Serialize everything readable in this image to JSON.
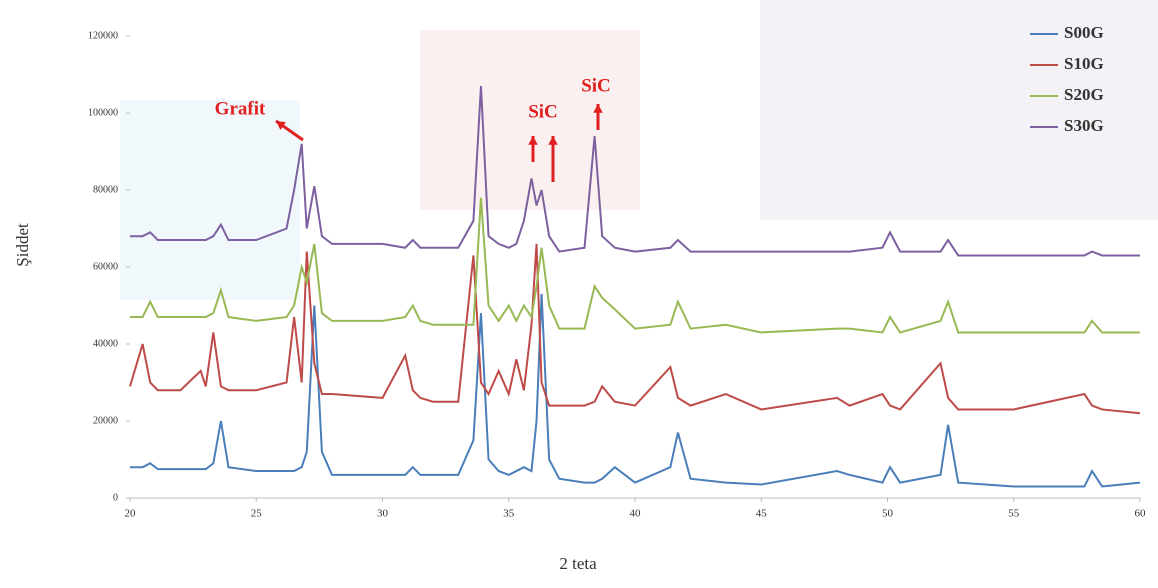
{
  "chart_data": {
    "type": "line",
    "y_label": "Şiddet",
    "x_label": "2 teta",
    "annotations": [
      "Grafit",
      "SiC",
      "SiC"
    ],
    "x": [
      20,
      20.5,
      20.8,
      21.1,
      22,
      22.8,
      23.0,
      23.3,
      23.6,
      23.9,
      25,
      26.2,
      26.5,
      26.8,
      27.0,
      27.3,
      27.6,
      28,
      30,
      30.9,
      31.2,
      31.5,
      32,
      33,
      33.6,
      33.9,
      34.2,
      34.6,
      35,
      35.3,
      35.6,
      35.9,
      36.1,
      36.3,
      36.6,
      37,
      38,
      38.4,
      38.7,
      39.2,
      40,
      41.4,
      41.7,
      42.2,
      43.6,
      45,
      48,
      48.5,
      49.8,
      50.1,
      50.5,
      52.1,
      52.4,
      52.8,
      55,
      57.8,
      58.1,
      58.5,
      60
    ],
    "series": [
      {
        "name": "S00G",
        "color": "#4a7ebb",
        "values": [
          8000,
          8000,
          9000,
          7500,
          7500,
          7500,
          7500,
          9000,
          20000,
          8000,
          7000,
          7000,
          7000,
          8000,
          12000,
          50000,
          12000,
          6000,
          6000,
          6000,
          8000,
          6000,
          6000,
          6000,
          15000,
          48000,
          10000,
          7000,
          6000,
          7000,
          8000,
          7000,
          20000,
          53000,
          10000,
          5000,
          4000,
          4000,
          5000,
          8000,
          4000,
          8000,
          17000,
          5000,
          4000,
          3500,
          7000,
          6000,
          4000,
          8000,
          4000,
          6000,
          19000,
          4000,
          3000,
          3000,
          7000,
          3000,
          4000
        ]
      },
      {
        "name": "S10G",
        "color": "#be4b48",
        "values": [
          29000,
          40000,
          30000,
          28000,
          28000,
          33000,
          29000,
          43000,
          29000,
          28000,
          28000,
          30000,
          47000,
          30000,
          64000,
          35000,
          27000,
          27000,
          26000,
          37000,
          28000,
          26000,
          25000,
          25000,
          63000,
          30000,
          27000,
          33000,
          27000,
          36000,
          28000,
          45000,
          66000,
          30000,
          24000,
          24000,
          24000,
          25000,
          29000,
          25000,
          24000,
          34000,
          26000,
          24000,
          27000,
          23000,
          26000,
          24000,
          27000,
          24000,
          23000,
          35000,
          26000,
          23000,
          23000,
          27000,
          24000,
          23000,
          22000
        ]
      },
      {
        "name": "S20G",
        "color": "#98b954",
        "values": [
          47000,
          47000,
          51000,
          47000,
          47000,
          47000,
          47000,
          48000,
          54000,
          47000,
          46000,
          47000,
          50000,
          60000,
          56000,
          66000,
          48000,
          46000,
          46000,
          47000,
          50000,
          46000,
          45000,
          45000,
          45000,
          78000,
          50000,
          46000,
          50000,
          46000,
          50000,
          47000,
          55000,
          65000,
          50000,
          44000,
          44000,
          55000,
          52000,
          49000,
          44000,
          45000,
          51000,
          44000,
          45000,
          43000,
          44000,
          44000,
          43000,
          47000,
          43000,
          46000,
          51000,
          43000,
          43000,
          43000,
          46000,
          43000,
          43000
        ]
      },
      {
        "name": "S30G",
        "color": "#7d60a0",
        "values": [
          68000,
          68000,
          69000,
          67000,
          67000,
          67000,
          67000,
          68000,
          71000,
          67000,
          67000,
          70000,
          80000,
          92000,
          70000,
          81000,
          68000,
          66000,
          66000,
          65000,
          67000,
          65000,
          65000,
          65000,
          72000,
          107000,
          68000,
          66000,
          65000,
          66000,
          72000,
          83000,
          76000,
          80000,
          68000,
          64000,
          65000,
          94000,
          68000,
          65000,
          64000,
          65000,
          67000,
          64000,
          64000,
          64000,
          64000,
          64000,
          65000,
          69000,
          64000,
          64000,
          67000,
          63000,
          63000,
          63000,
          64000,
          63000,
          63000
        ]
      }
    ],
    "xlim": [
      20,
      60
    ],
    "ylim": [
      0,
      120000
    ],
    "xticks": [
      20,
      25,
      30,
      35,
      40,
      45,
      50,
      55,
      60
    ],
    "yticks": [
      0,
      20000,
      40000,
      60000,
      80000,
      100000,
      120000
    ],
    "grid": false,
    "legend": "top-right"
  }
}
